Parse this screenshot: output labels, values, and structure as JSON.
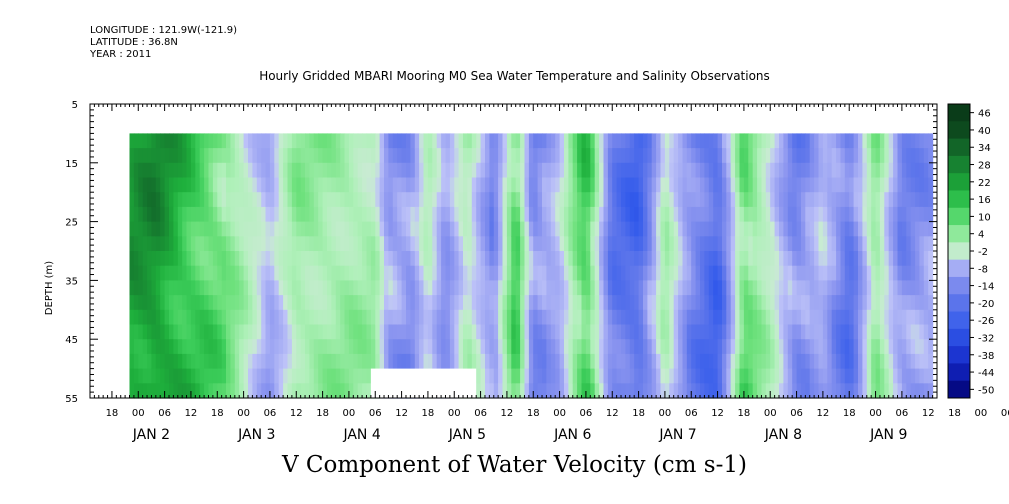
{
  "header": {
    "longitude": "LONGITUDE : 121.9W(-121.9)",
    "latitude": "LATITUDE : 36.8N",
    "year": "YEAR : 2011"
  },
  "chart_data": {
    "type": "heatmap",
    "title": "Hourly Gridded MBARI Mooring M0 Sea Water Temperature and Salinity Observations",
    "xlabel": "V Component of Water Velocity (cm s-1)",
    "ylabel": "DEPTH (m)",
    "ylim": [
      55,
      5
    ],
    "y_ticks": [
      5,
      15,
      25,
      35,
      45,
      55
    ],
    "x_hour_ticks": [
      "18",
      "00",
      "06",
      "12",
      "18",
      "00",
      "06",
      "12",
      "18",
      "00",
      "06",
      "12",
      "18",
      "00",
      "06",
      "12",
      "18",
      "00",
      "06",
      "12",
      "18",
      "00",
      "06",
      "12",
      "18",
      "00",
      "06",
      "12",
      "18",
      "00",
      "06",
      "12",
      "18",
      "00",
      "06",
      "12"
    ],
    "x_day_labels": [
      "JAN  2",
      "JAN  3",
      "JAN  4",
      "JAN  5",
      "JAN  6",
      "JAN  7",
      "JAN  8",
      "JAN  9"
    ],
    "colorbar_levels": [
      "46",
      "40",
      "34",
      "28",
      "22",
      "16",
      "10",
      "4",
      "-2",
      "-8",
      "-14",
      "-20",
      "-26",
      "-32",
      "-38",
      "-44",
      "-50"
    ],
    "data_depth_range": [
      10,
      55
    ],
    "profile_by_time": [
      {
        "t": "JAN 1 22:00",
        "v": 24
      },
      {
        "t": "JAN 2 04:00",
        "v": 28
      },
      {
        "t": "JAN 2 10:00",
        "v": 20
      },
      {
        "t": "JAN 2 16:00",
        "v": 14
      },
      {
        "t": "JAN 2 22:00",
        "v": 6
      },
      {
        "t": "JAN 3 06:00",
        "v": -6
      },
      {
        "t": "JAN 3 12:00",
        "v": 6
      },
      {
        "t": "JAN 4 00:00",
        "v": 6
      },
      {
        "t": "JAN 4 06:00",
        "v": 4
      },
      {
        "t": "JAN 4 09:00",
        "v": -8
      },
      {
        "t": "JAN 4 14:00",
        "v": -10
      },
      {
        "t": "JAN 4 18:00",
        "v": 2
      },
      {
        "t": "JAN 4 22:00",
        "v": -8
      },
      {
        "t": "JAN 5 03:00",
        "v": 4
      },
      {
        "t": "JAN 5 09:00",
        "v": -10
      },
      {
        "t": "JAN 5 14:00",
        "v": 14
      },
      {
        "t": "JAN 5 18:00",
        "v": -12
      },
      {
        "t": "JAN 6 00:00",
        "v": -4
      },
      {
        "t": "JAN 6 06:00",
        "v": 16
      },
      {
        "t": "JAN 6 12:00",
        "v": -14
      },
      {
        "t": "JAN 6 18:00",
        "v": -20
      },
      {
        "t": "JAN 7 00:00",
        "v": 4
      },
      {
        "t": "JAN 7 06:00",
        "v": -12
      },
      {
        "t": "JAN 7 12:00",
        "v": -20
      },
      {
        "t": "JAN 7 18:00",
        "v": 12
      },
      {
        "t": "JAN 8 00:00",
        "v": 2
      },
      {
        "t": "JAN 8 06:00",
        "v": -12
      },
      {
        "t": "JAN 8 12:00",
        "v": -4
      },
      {
        "t": "JAN 8 18:00",
        "v": -16
      },
      {
        "t": "JAN 9 00:00",
        "v": 8
      },
      {
        "t": "JAN 9 06:00",
        "v": -10
      },
      {
        "t": "JAN 9 13:00",
        "v": -8
      }
    ],
    "colors": {
      "gridline": "#000000",
      "background": "#ffffff",
      "positive_max": "#0a3d1a",
      "near_zero_pos": "#b8f0c0",
      "near_zero_neg": "#c8c8f8",
      "negative_max": "#000080"
    }
  }
}
